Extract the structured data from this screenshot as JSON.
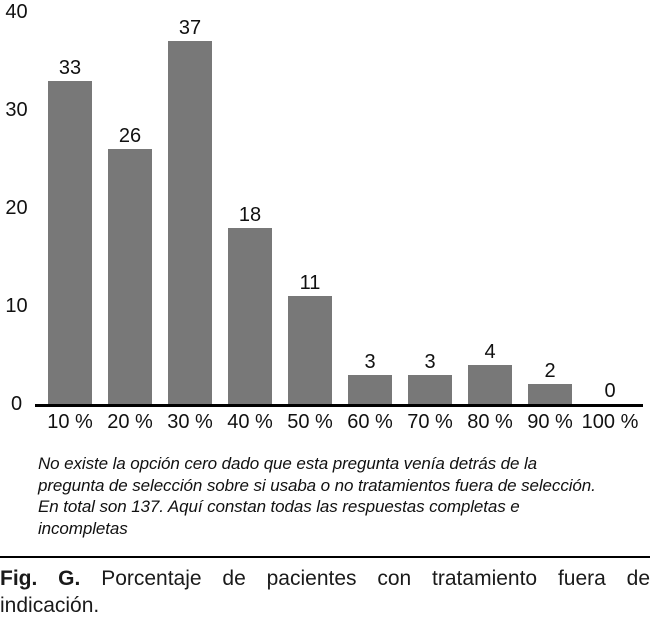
{
  "chart_data": {
    "type": "bar",
    "categories": [
      "10 %",
      "20 %",
      "30 %",
      "40 %",
      "50 %",
      "60 %",
      "70 %",
      "80 %",
      "90 %",
      "100 %"
    ],
    "values": [
      33,
      26,
      37,
      18,
      11,
      3,
      3,
      4,
      2,
      0
    ],
    "title": "",
    "xlabel": "",
    "ylabel": "",
    "ylim": [
      0,
      40
    ],
    "yticks": [
      0,
      10,
      20,
      30,
      40
    ],
    "bar_color": "#787878",
    "axis_color": "#000000",
    "grid": false,
    "legend": "none",
    "value_labels": true
  },
  "footnote": {
    "lines": [
      "No existe la opción cero dado que esta pregunta venía detrás de la",
      "pregunta de selección sobre si usaba o no tratamientos fuera de selección.",
      "En total son 137. Aquí constan todas las respuestas completas e",
      "incompletas"
    ]
  },
  "caption": {
    "label": "Fig. G.",
    "line1_rest": "Porcentaje de pacientes con tratamiento fuera de",
    "line2": "indicación."
  }
}
